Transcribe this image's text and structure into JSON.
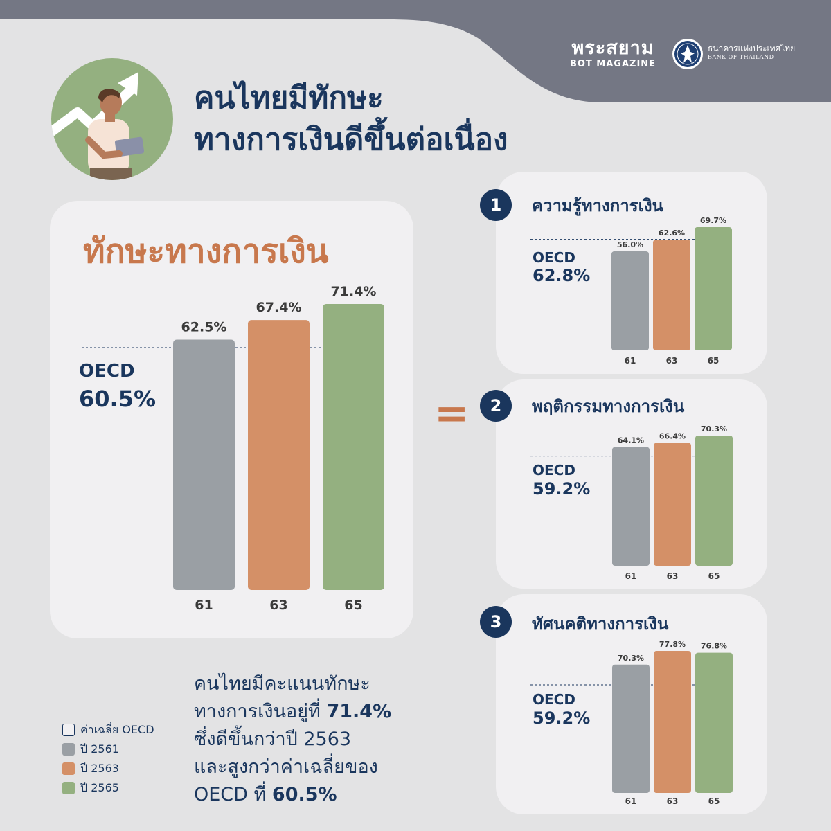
{
  "header": {
    "brand_thai": "พระสยาม",
    "brand_en": "BOT MAGAZINE",
    "bank_thai": "ธนาคารแห่งประเทศไทย",
    "bank_en": "BANK OF THAILAND",
    "band_color": "#747784"
  },
  "title": {
    "line1": "คนไทยมีทักษะ",
    "line2": "ทางการเงินดีขึ้นต่อเนื่อง"
  },
  "icons": [
    "person-growth-icon",
    "bank-seal-icon"
  ],
  "colors": {
    "navy": "#1a365d",
    "orange_text": "#c8784d",
    "y2561": "#9a9fa4",
    "y2563": "#d49067",
    "y2565": "#94b080",
    "card": "#f1f0f2",
    "background": "#e3e3e4"
  },
  "main": {
    "heading": "ทักษะทางการเงิน",
    "equals": "="
  },
  "chart_data": [
    {
      "type": "bar",
      "title": "ทักษะทางการเงิน",
      "categories": [
        "61",
        "63",
        "65"
      ],
      "values": [
        62.5,
        67.4,
        71.4
      ],
      "value_labels": [
        "62.5%",
        "67.4%",
        "71.4%"
      ],
      "reference": {
        "label": "OECD",
        "value": 60.5,
        "value_label": "60.5%"
      },
      "colors": [
        "#9a9fa4",
        "#d49067",
        "#94b080"
      ],
      "ylim": [
        0,
        71.4
      ],
      "grid": false
    },
    {
      "type": "bar",
      "number": "1",
      "title": "ความรู้ทางการเงิน",
      "categories": [
        "61",
        "63",
        "65"
      ],
      "values": [
        56.0,
        62.6,
        69.7
      ],
      "value_labels": [
        "56.0%",
        "62.6%",
        "69.7%"
      ],
      "reference": {
        "label": "OECD",
        "value": 62.8,
        "value_label": "62.8%"
      },
      "colors": [
        "#9a9fa4",
        "#d49067",
        "#94b080"
      ],
      "ylim": [
        0,
        69.7
      ],
      "grid": false
    },
    {
      "type": "bar",
      "number": "2",
      "title": "พฤติกรรมทางการเงิน",
      "categories": [
        "61",
        "63",
        "65"
      ],
      "values": [
        64.1,
        66.4,
        70.3
      ],
      "value_labels": [
        "64.1%",
        "66.4%",
        "70.3%"
      ],
      "reference": {
        "label": "OECD",
        "value": 59.2,
        "value_label": "59.2%"
      },
      "colors": [
        "#9a9fa4",
        "#d49067",
        "#94b080"
      ],
      "ylim": [
        0,
        70.3
      ],
      "grid": false
    },
    {
      "type": "bar",
      "number": "3",
      "title": "ทัศนคติทางการเงิน",
      "categories": [
        "61",
        "63",
        "65"
      ],
      "values": [
        70.3,
        77.8,
        76.8
      ],
      "value_labels": [
        "70.3%",
        "77.8%",
        "76.8%"
      ],
      "reference": {
        "label": "OECD",
        "value": 59.2,
        "value_label": "59.2%"
      },
      "colors": [
        "#9a9fa4",
        "#d49067",
        "#94b080"
      ],
      "ylim": [
        0,
        77.8
      ],
      "grid": false
    }
  ],
  "legend": [
    {
      "label": "ค่าเฉลี่ย OECD",
      "color": "#f1f0f2",
      "outline": true
    },
    {
      "label": "ปี 2561",
      "color": "#9a9fa4"
    },
    {
      "label": "ปี 2563",
      "color": "#d49067"
    },
    {
      "label": "ปี 2565",
      "color": "#94b080"
    }
  ],
  "summary": {
    "l1": "คนไทยมีคะแนนทักษะ",
    "l2a": "ทางการเงินอยู่ที่ ",
    "l2b": "71.4%",
    "l3": "ซึ่งดีขึ้นกว่าปี 2563",
    "l4": "และสูงกว่าค่าเฉลี่ยของ",
    "l5a": "OECD ที่ ",
    "l5b": "60.5%"
  }
}
